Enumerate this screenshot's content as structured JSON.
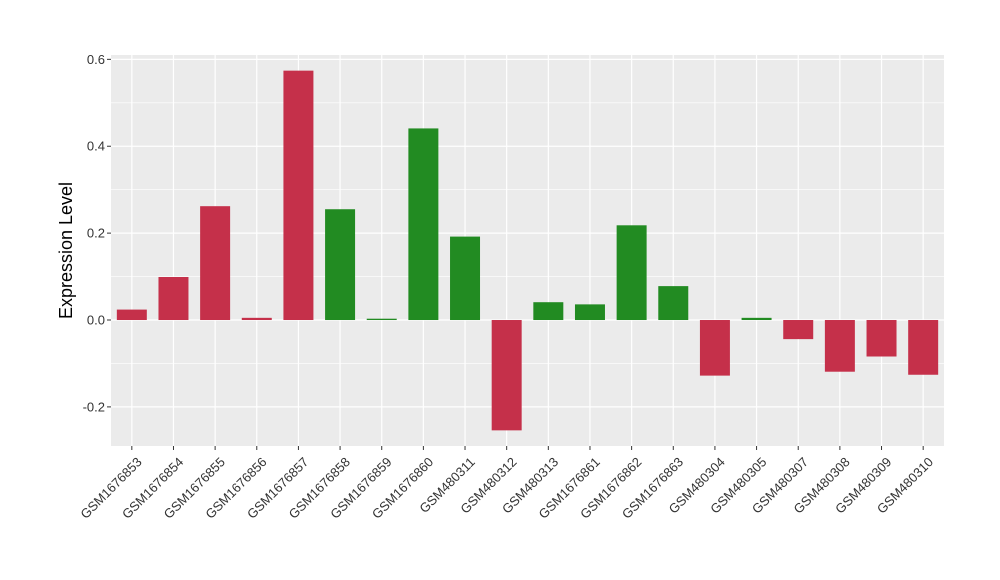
{
  "chart_data": {
    "type": "bar",
    "title": "",
    "xlabel": "",
    "ylabel": "Expression Level",
    "ylim": [
      -0.29,
      0.61
    ],
    "yticks": [
      -0.2,
      0.0,
      0.2,
      0.4,
      0.6
    ],
    "ytick_labels": [
      "-0.2",
      "0.0",
      "0.2",
      "0.4",
      "0.6"
    ],
    "grid": true,
    "legend": "none",
    "colors": {
      "red": "#C5304A",
      "green": "#228B22",
      "panel": "#EBEBEB",
      "gridline": "#FFFFFF"
    },
    "categories": [
      "GSM1676853",
      "GSM1676854",
      "GSM1676855",
      "GSM1676856",
      "GSM1676857",
      "GSM1676858",
      "GSM1676859",
      "GSM1676860",
      "GSM480311",
      "GSM480312",
      "GSM480313",
      "GSM1676861",
      "GSM1676862",
      "GSM1676863",
      "GSM480304",
      "GSM480305",
      "GSM480307",
      "GSM480308",
      "GSM480309",
      "GSM480310"
    ],
    "values": [
      0.024,
      0.099,
      0.262,
      0.005,
      0.574,
      0.255,
      0.003,
      0.441,
      0.192,
      -0.254,
      0.041,
      0.036,
      0.218,
      0.078,
      -0.128,
      0.005,
      -0.044,
      -0.119,
      -0.084,
      -0.126
    ],
    "bar_colors": [
      "red",
      "red",
      "red",
      "red",
      "red",
      "green",
      "green",
      "green",
      "green",
      "red",
      "green",
      "green",
      "green",
      "green",
      "red",
      "green",
      "red",
      "red",
      "red",
      "red"
    ]
  }
}
